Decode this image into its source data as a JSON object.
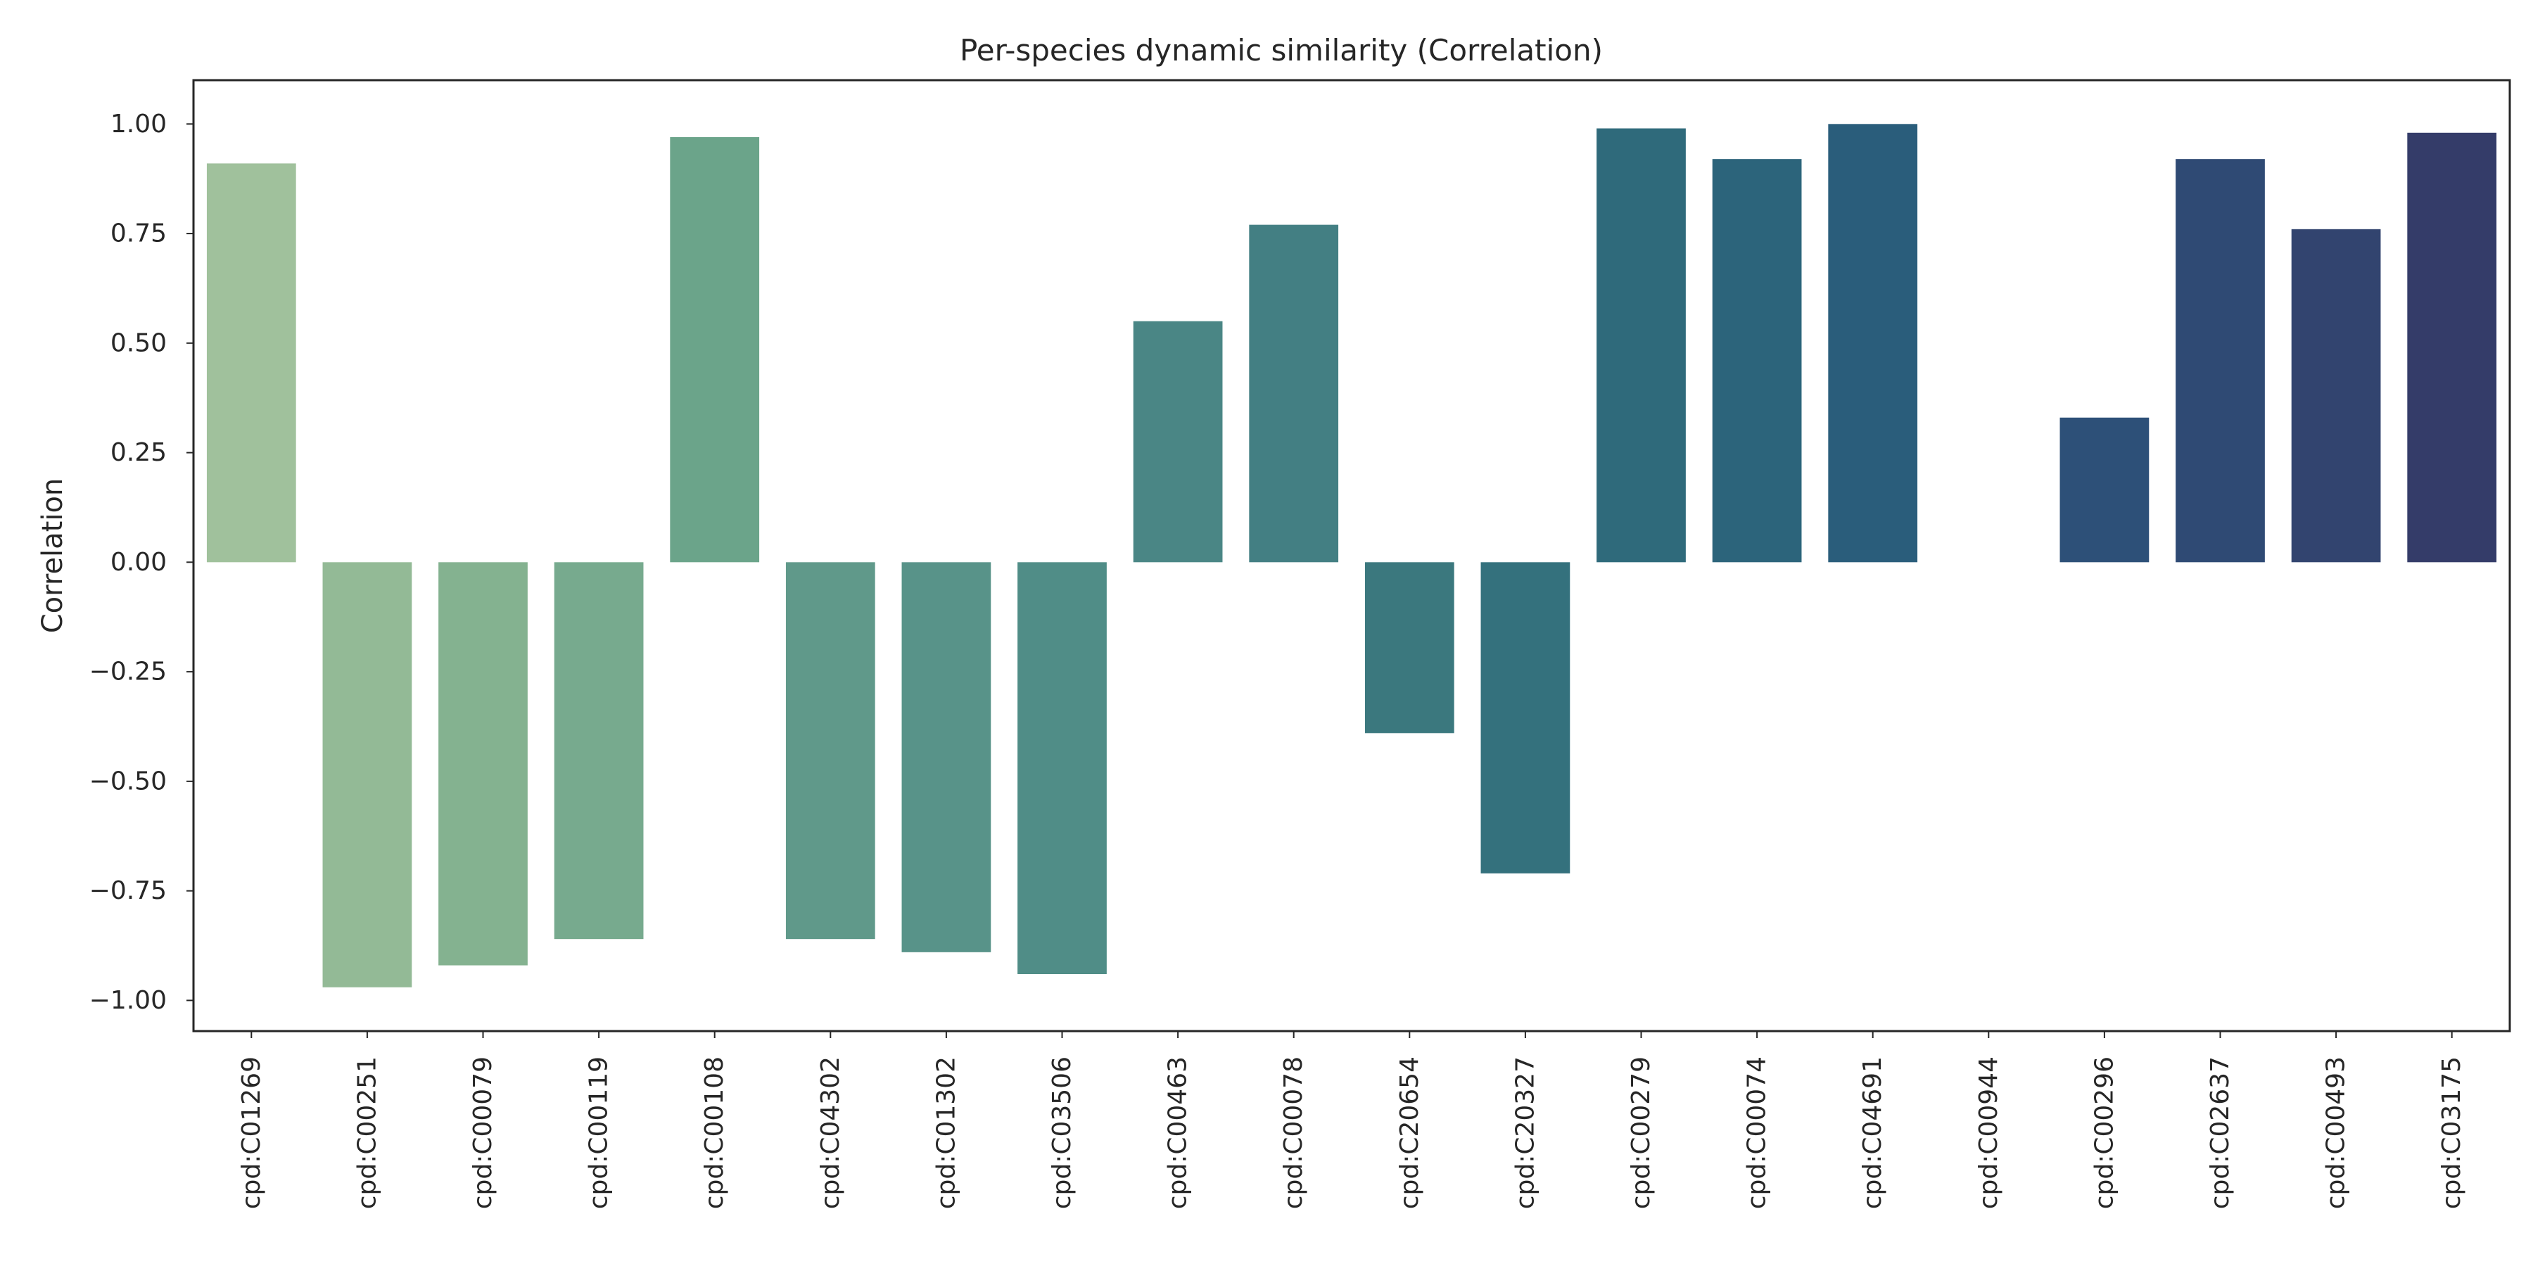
{
  "chart_data": {
    "type": "bar",
    "title": "Per-species dynamic similarity (Correlation)",
    "xlabel": "",
    "ylabel": "Correlation",
    "ylim": [
      -1.07,
      1.1
    ],
    "yticks": [
      1.0,
      0.75,
      0.5,
      0.25,
      0.0,
      -0.25,
      -0.5,
      -0.75,
      -1.0
    ],
    "ytick_labels": [
      "1.00",
      "0.75",
      "0.50",
      "0.25",
      "0.00",
      "−0.25",
      "−0.50",
      "−0.75",
      "−1.00"
    ],
    "grid": false,
    "legend": "none",
    "categories": [
      "cpd:C01269",
      "cpd:C00251",
      "cpd:C00079",
      "cpd:C00119",
      "cpd:C00108",
      "cpd:C04302",
      "cpd:C01302",
      "cpd:C03506",
      "cpd:C00463",
      "cpd:C00078",
      "cpd:C20654",
      "cpd:C20327",
      "cpd:C00279",
      "cpd:C00074",
      "cpd:C04691",
      "cpd:C00944",
      "cpd:C00296",
      "cpd:C02637",
      "cpd:C00493",
      "cpd:C03175"
    ],
    "values": [
      0.91,
      -0.97,
      -0.92,
      -0.86,
      0.97,
      -0.86,
      -0.89,
      -0.94,
      0.55,
      0.77,
      -0.39,
      -0.71,
      0.99,
      0.92,
      1.0,
      0.0,
      0.33,
      0.92,
      0.76,
      0.98
    ],
    "colors": [
      "#a0c19c",
      "#93ba96",
      "#84b290",
      "#77aa8e",
      "#6ba48a",
      "#60998a",
      "#589389",
      "#508d87",
      "#4a8685",
      "#437f83",
      "#3b787e",
      "#34717d",
      "#2f6a7b",
      "#2c647b",
      "#2a5d7b",
      "#2b577a",
      "#2d5078",
      "#2f4a74",
      "#32446f",
      "#343c69"
    ]
  }
}
